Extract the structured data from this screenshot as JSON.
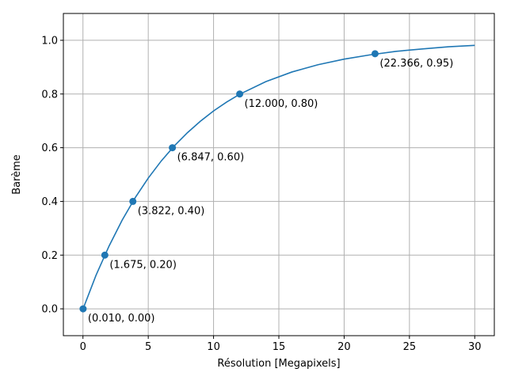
{
  "chart_data": {
    "type": "line",
    "title": "",
    "xlabel": "Résolution [Megapixels]",
    "ylabel": "Barème",
    "xlim": [
      -1.5,
      31.5
    ],
    "ylim": [
      -0.1,
      1.1
    ],
    "xticks": [
      0,
      5,
      10,
      15,
      20,
      25,
      30
    ],
    "yticks": [
      0.0,
      0.2,
      0.4,
      0.6,
      0.8,
      1.0
    ],
    "xtick_labels": [
      "0",
      "5",
      "10",
      "15",
      "20",
      "25",
      "30"
    ],
    "ytick_labels": [
      "0.0",
      "0.2",
      "0.4",
      "0.6",
      "0.8",
      "1.0"
    ],
    "grid": true,
    "series": [
      {
        "type": "line",
        "color": "#1f77b4",
        "x": [
          0.01,
          1,
          2,
          3,
          4,
          5,
          6,
          7,
          8,
          9,
          10,
          11,
          12,
          14,
          16,
          18,
          20,
          22,
          24,
          26,
          28,
          30
        ],
        "y": [
          0.0,
          0.125,
          0.234,
          0.33,
          0.414,
          0.487,
          0.551,
          0.607,
          0.656,
          0.699,
          0.737,
          0.77,
          0.799,
          0.846,
          0.882,
          0.909,
          0.93,
          0.946,
          0.959,
          0.968,
          0.976,
          0.981
        ]
      }
    ],
    "points": [
      {
        "x": 0.01,
        "y": 0.0,
        "label": "(0.010, 0.00)"
      },
      {
        "x": 1.675,
        "y": 0.2,
        "label": "(1.675, 0.20)"
      },
      {
        "x": 3.822,
        "y": 0.4,
        "label": "(3.822, 0.40)"
      },
      {
        "x": 6.847,
        "y": 0.6,
        "label": "(6.847, 0.60)"
      },
      {
        "x": 12.0,
        "y": 0.8,
        "label": "(12.000, 0.80)"
      },
      {
        "x": 22.366,
        "y": 0.95,
        "label": "(22.366, 0.95)"
      }
    ]
  }
}
